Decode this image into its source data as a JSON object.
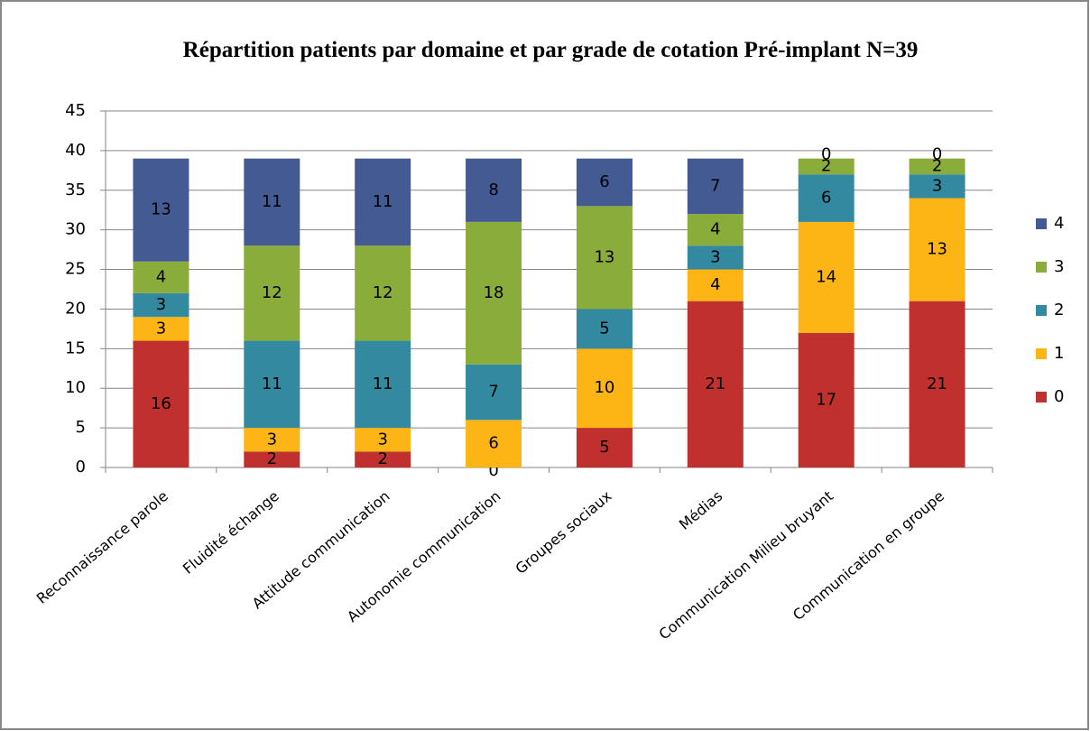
{
  "chart_data": {
    "type": "stacked_bar",
    "title": "Répartition patients par domaine et par grade de cotation Pré-implant N=39",
    "categories": [
      "Reconnaissance parole",
      "Fluidité échange",
      "Attitude communication",
      "Autonomie communication",
      "Groupes sociaux",
      "Médias",
      "Communication Milieu bruyant",
      "Communication en groupe"
    ],
    "series": [
      {
        "name": "0",
        "color": "#c0302f",
        "values": [
          16,
          2,
          2,
          0,
          5,
          21,
          17,
          21
        ]
      },
      {
        "name": "1",
        "color": "#fdb515",
        "values": [
          3,
          3,
          3,
          6,
          10,
          4,
          14,
          13
        ]
      },
      {
        "name": "2",
        "color": "#3289a0",
        "values": [
          3,
          11,
          11,
          7,
          5,
          3,
          6,
          3
        ]
      },
      {
        "name": "3",
        "color": "#8aac3a",
        "values": [
          4,
          12,
          12,
          18,
          13,
          4,
          2,
          2
        ]
      },
      {
        "name": "4",
        "color": "#445a92",
        "values": [
          13,
          11,
          11,
          8,
          6,
          7,
          0,
          0
        ]
      }
    ],
    "ylim": [
      0,
      45
    ],
    "yticks": [
      0,
      5,
      10,
      15,
      20,
      25,
      30,
      35,
      40,
      45
    ],
    "grid": true,
    "legend": "right"
  }
}
